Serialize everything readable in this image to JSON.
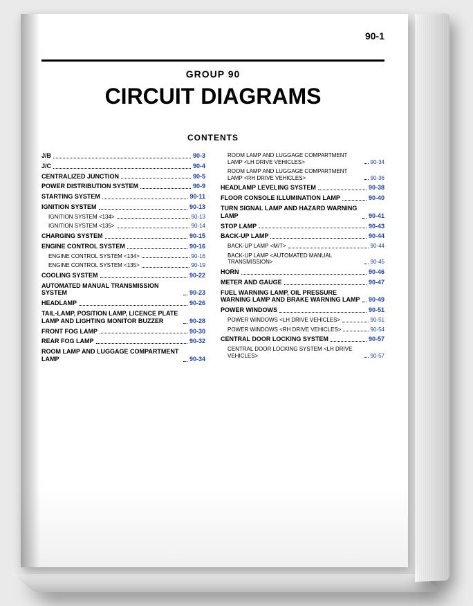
{
  "pageNumber": "90-1",
  "groupLabel": "GROUP 90",
  "title": "CIRCUIT DIAGRAMS",
  "contentsLabel": "CONTENTS",
  "leftColumn": [
    {
      "label": "J/B",
      "page": "90-3"
    },
    {
      "label": "J/C",
      "page": "90-4"
    },
    {
      "label": "CENTRALIZED JUNCTION",
      "page": "90-5"
    },
    {
      "label": "POWER DISTRIBUTION SYSTEM",
      "page": "90-9"
    },
    {
      "label": "STARTING SYSTEM",
      "page": "90-11"
    },
    {
      "label": "IGNITION SYSTEM",
      "page": "90-13"
    },
    {
      "label": "IGNITION SYSTEM <134>",
      "page": "90-13",
      "sub": true
    },
    {
      "label": "IGNITION SYSTEM <135>",
      "page": "90-14",
      "sub": true
    },
    {
      "label": "CHARGING SYSTEM",
      "page": "90-15"
    },
    {
      "label": "ENGINE CONTROL SYSTEM",
      "page": "90-16"
    },
    {
      "label": "ENGINE CONTROL SYSTEM <134>",
      "page": "90-16",
      "sub": true
    },
    {
      "label": "ENGINE CONTROL SYSTEM <135>",
      "page": "90-19",
      "sub": true
    },
    {
      "label": "COOLING SYSTEM",
      "page": "90-22"
    },
    {
      "label": "AUTOMATED MANUAL TRANSMISSION SYSTEM",
      "page": "90-23"
    },
    {
      "label": "HEADLAMP",
      "page": "90-26"
    },
    {
      "label": "TAIL-LAMP, POSITION LAMP, LICENCE PLATE LAMP AND LIGHTING MONITOR BUZZER",
      "page": "90-28"
    },
    {
      "label": "FRONT FOG LAMP",
      "page": "90-30"
    },
    {
      "label": "REAR FOG LAMP",
      "page": "90-32"
    },
    {
      "label": "ROOM LAMP AND LUGGAGE COMPARTMENT LAMP",
      "page": "90-34"
    }
  ],
  "rightColumn": [
    {
      "label": "ROOM LAMP AND LUGGAGE COMPARTMENT LAMP <LH DRIVE VEHICLES>",
      "page": "90-34",
      "sub": true
    },
    {
      "label": "ROOM LAMP AND LUGGAGE COMPARTMENT LAMP <RH DRIVE VEHICLES>",
      "page": "90-36",
      "sub": true
    },
    {
      "label": "HEADLAMP LEVELING SYSTEM",
      "page": "90-38"
    },
    {
      "label": "FLOOR CONSOLE ILLUMINATION LAMP",
      "page": "90-40"
    },
    {
      "label": "TURN SIGNAL LAMP AND HAZARD WARNING LAMP",
      "page": "90-41"
    },
    {
      "label": "STOP LAMP",
      "page": "90-43"
    },
    {
      "label": "BACK-UP LAMP",
      "page": "90-44"
    },
    {
      "label": "BACK-UP LAMP <M/T>",
      "page": "90-44",
      "sub": true
    },
    {
      "label": "BACK-UP LAMP <AUTOMATED MANUAL TRANSMISSION>",
      "page": "90-45",
      "sub": true
    },
    {
      "label": "HORN",
      "page": "90-46"
    },
    {
      "label": "METER AND GAUGE",
      "page": "90-47"
    },
    {
      "label": "FUEL WARNING LAMP, OIL PRESSURE WARNING LAMP AND BRAKE WARNING LAMP",
      "page": "90-49"
    },
    {
      "label": "POWER WINDOWS",
      "page": "90-51"
    },
    {
      "label": "POWER WINDOWS <LH DRIVE VEHICLES>",
      "page": "90-51",
      "sub": true
    },
    {
      "label": "POWER WINDOWS <RH DRIVE VEHICLES>",
      "page": "90-54",
      "sub": true
    },
    {
      "label": "CENTRAL DOOR LOCKING SYSTEM",
      "page": "90-57"
    },
    {
      "label": "CENTRAL DOOR LOCKING SYSTEM <LH DRIVE VEHICLES>",
      "page": "90-57",
      "sub": true
    }
  ]
}
